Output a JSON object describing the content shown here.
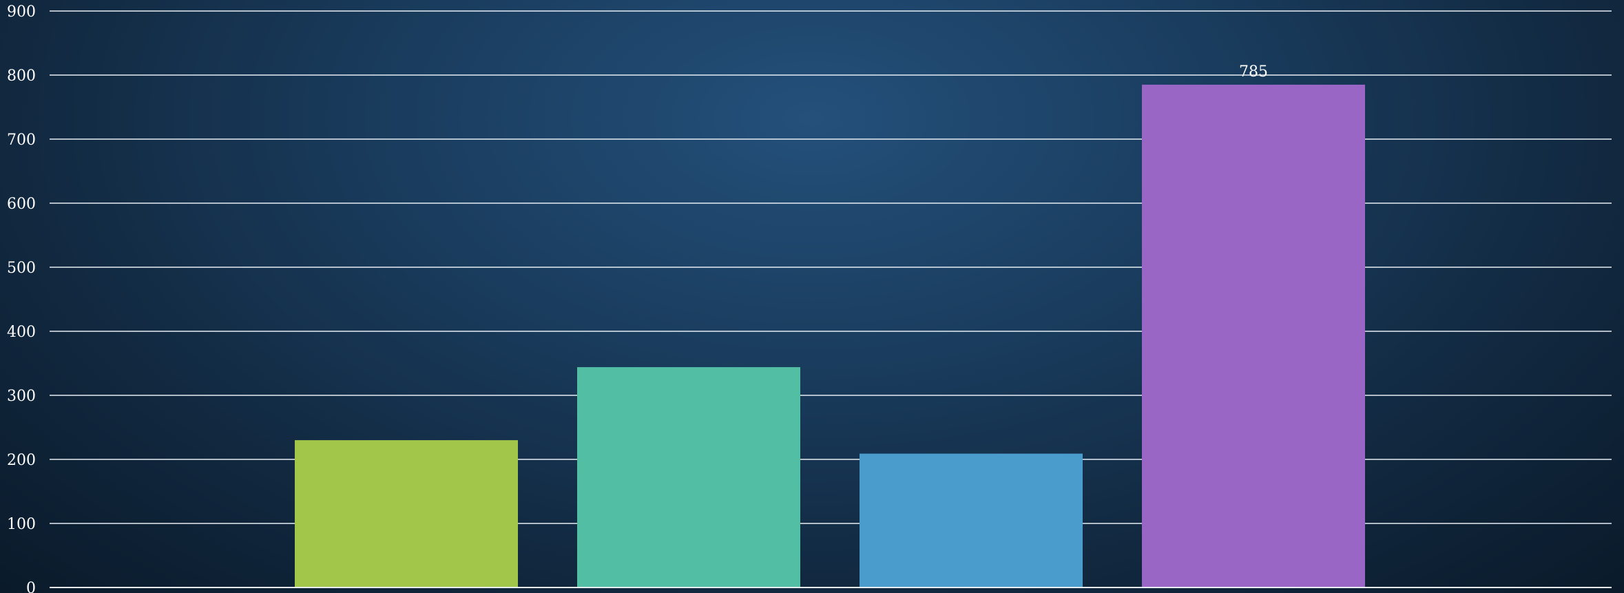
{
  "chart_data": {
    "type": "bar",
    "categories": [
      "",
      "",
      "",
      "",
      ""
    ],
    "values": [
      0,
      230,
      344,
      209,
      785
    ],
    "colors": [
      "#a2c64a",
      "#a2c64a",
      "#52bea3",
      "#4a9ccc",
      "#9966c6"
    ],
    "data_labels": [
      "",
      "",
      "",
      "",
      "785"
    ],
    "ylim": [
      0,
      900
    ],
    "yticks": [
      0,
      100,
      200,
      300,
      400,
      500,
      600,
      700,
      800,
      900
    ],
    "grid": true,
    "title": "",
    "xlabel": "",
    "ylabel": ""
  }
}
